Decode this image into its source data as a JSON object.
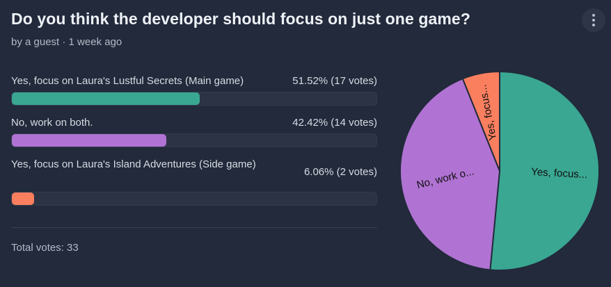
{
  "poll": {
    "title": "Do you think the developer should focus on just one game?",
    "subtitle": "by a guest · 1 week ago",
    "total_text": "Total votes: 33"
  },
  "options": [
    {
      "label": "Yes, focus on Laura's Lustful Secrets (Main game)",
      "value_text": "51.52% (17 votes)",
      "percent": 51.52,
      "color": "#3aa792"
    },
    {
      "label": "No, work on both.",
      "value_text": "42.42% (14 votes)",
      "percent": 42.42,
      "color": "#b073d3"
    },
    {
      "label": "Yes, focus on Laura's Island Adventures (Side game)",
      "value_text": "6.06% (2 votes)",
      "percent": 6.06,
      "color": "#f97f5f"
    }
  ],
  "chart_data": {
    "type": "pie",
    "categories": [
      "Yes, focus on Laura's Lustful Secrets (Main game)",
      "No, work on both.",
      "Yes, focus on Laura's Island Adventures (Side game)"
    ],
    "values": [
      51.52,
      42.42,
      6.06
    ],
    "slice_labels": [
      "Yes, focus...",
      "No, work o...",
      "Yes, focus..."
    ],
    "colors": [
      "#3aa792",
      "#b073d3",
      "#f97f5f"
    ]
  },
  "icons": {
    "menu": "vertical-ellipsis-icon"
  }
}
